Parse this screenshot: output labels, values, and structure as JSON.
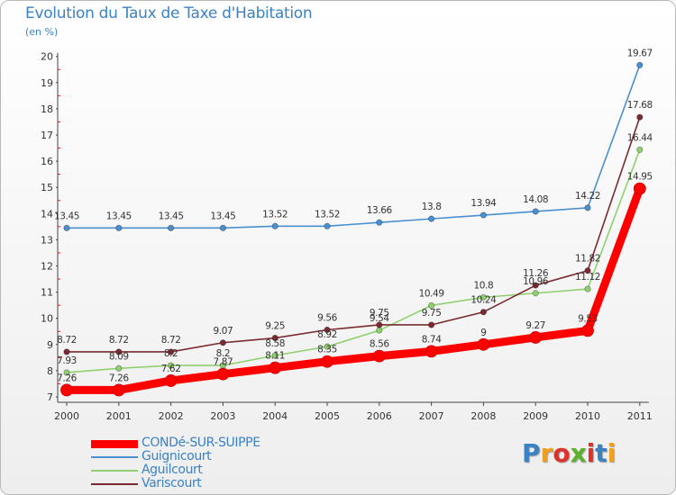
{
  "title": "Evolution du Taux de Taxe d'Habitation",
  "unit_label": "(en %)",
  "logo": {
    "text": "Proxiti",
    "colors": [
      "#3b82c4",
      "#f0a020",
      "#e0302a",
      "#60b030",
      "#e0302a",
      "#3b82c4",
      "#f0a020"
    ]
  },
  "chart_data": {
    "type": "line",
    "title": "Evolution du Taux de Taxe d'Habitation",
    "ylabel": "(en %)",
    "xlabel": "",
    "ylim": [
      7,
      20
    ],
    "yticks": [
      7,
      8,
      9,
      10,
      11,
      12,
      13,
      14,
      15,
      16,
      17,
      18,
      19,
      20
    ],
    "categories": [
      "2000",
      "2001",
      "2002",
      "2003",
      "2004",
      "2005",
      "2006",
      "2007",
      "2008",
      "2009",
      "2010",
      "2011"
    ],
    "grid": false,
    "legend_position": "bottom-left",
    "series": [
      {
        "name": "CONDé-SUR-SUIPPE",
        "color": "#ff0000",
        "values": [
          7.26,
          7.26,
          7.62,
          7.87,
          8.11,
          8.35,
          8.56,
          8.74,
          9,
          9.27,
          9.53,
          14.95
        ],
        "labels": [
          "7.26",
          "7.26",
          "7.62",
          "7.87",
          "8.11",
          "8.35",
          "8.56",
          "8.74",
          "9",
          "9.27",
          "9.53",
          "14.95"
        ]
      },
      {
        "name": "Guignicourt",
        "color": "#4a8fd0",
        "values": [
          13.45,
          13.45,
          13.45,
          13.45,
          13.52,
          13.52,
          13.66,
          13.8,
          13.94,
          14.08,
          14.22,
          19.67
        ],
        "labels": [
          "13.45",
          "13.45",
          "13.45",
          "13.45",
          "13.52",
          "13.52",
          "13.66",
          "13.8",
          "13.94",
          "14.08",
          "14.22",
          "19.67"
        ]
      },
      {
        "name": "Aguilcourt",
        "color": "#90d070",
        "values": [
          7.93,
          8.09,
          8.2,
          8.2,
          8.58,
          8.92,
          9.54,
          10.49,
          10.8,
          10.96,
          11.12,
          16.44
        ],
        "labels": [
          "7.93",
          "8.09",
          "8.2",
          "8.2",
          "8.58",
          "8.92",
          "9.54",
          "10.49",
          "10.8",
          "10.96",
          "11.12",
          "16.44"
        ]
      },
      {
        "name": "Variscourt",
        "color": "#7a2a30",
        "values": [
          8.72,
          8.72,
          8.72,
          9.07,
          9.25,
          9.56,
          9.75,
          9.75,
          10.24,
          11.26,
          11.82,
          17.68
        ],
        "labels": [
          "8.72",
          "8.72",
          "8.72",
          "9.07",
          "9.25",
          "9.56",
          "9.75",
          "9.75",
          "10.24",
          "11.26",
          "11.82",
          "17.68"
        ]
      }
    ]
  }
}
